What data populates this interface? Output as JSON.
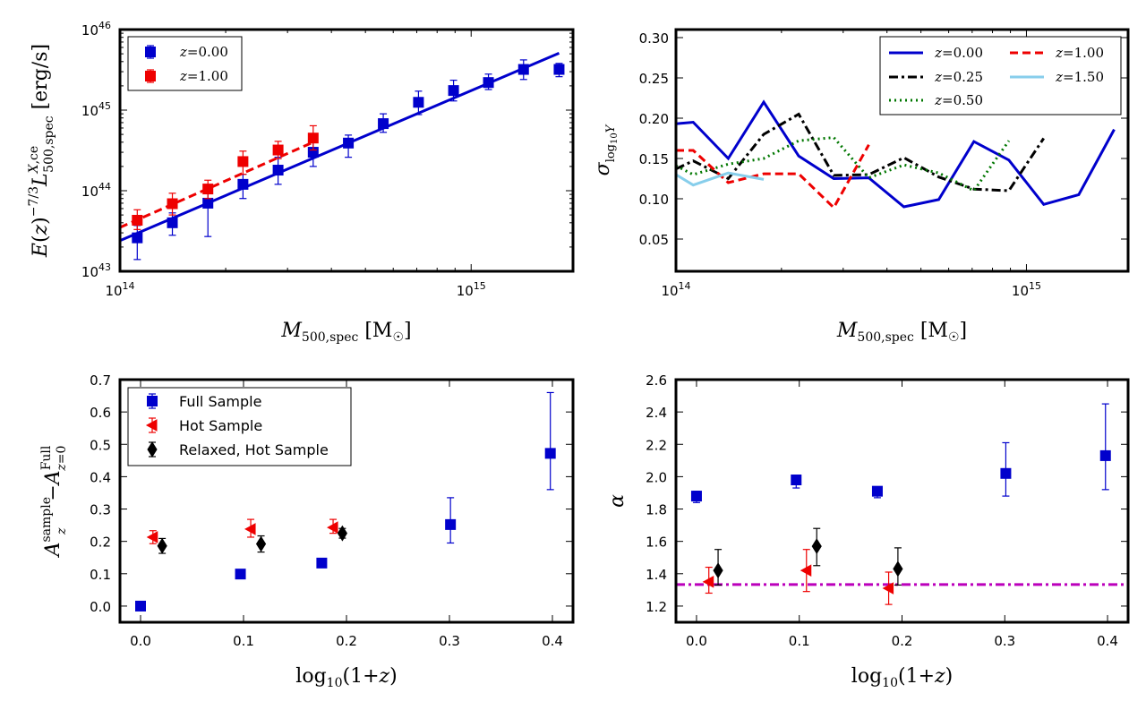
{
  "chart_data": [
    {
      "type": "scatter",
      "panel": "top-left",
      "xscale": "log",
      "yscale": "log",
      "xlim": [
        100000000000000.0,
        1950000000000000.0
      ],
      "ylim": [
        1e+43,
        1e+46
      ],
      "xlabel": "M_500,spec [M_☉]",
      "ylabel": "E(z)^-7/3 L^X,ce_500,spec [erg/s]",
      "xticks": [
        "10^14",
        "10^15"
      ],
      "yticks": [
        "10^43",
        "10^44",
        "10^45",
        "10^46"
      ],
      "legend_position": "top-left",
      "series": [
        {
          "name": "z=0.00",
          "color": "#0000cc",
          "marker": "square",
          "points": [
            {
              "x": 112000000000000.0,
              "y": 2.6e+43,
              "lo": 1.4e+43,
              "hi": 3.7e+43
            },
            {
              "x": 141000000000000.0,
              "y": 4e+43,
              "lo": 2.8e+43,
              "hi": 5.3e+43
            },
            {
              "x": 178000000000000.0,
              "y": 7e+43,
              "lo": 2.7e+43,
              "hi": 9.2e+43
            },
            {
              "x": 224000000000000.0,
              "y": 1.2e+44,
              "lo": 8e+43,
              "hi": 1.6e+44
            },
            {
              "x": 282000000000000.0,
              "y": 1.8e+44,
              "lo": 1.2e+44,
              "hi": 2.6e+44
            },
            {
              "x": 355000000000000.0,
              "y": 3e+44,
              "lo": 2e+44,
              "hi": 4e+44
            },
            {
              "x": 447000000000000.0,
              "y": 3.9e+44,
              "lo": 2.6e+44,
              "hi": 4.9e+44
            },
            {
              "x": 562000000000000.0,
              "y": 6.8e+44,
              "lo": 5.3e+44,
              "hi": 9e+44
            },
            {
              "x": 708000000000000.0,
              "y": 1.25e+45,
              "lo": 8.8e+44,
              "hi": 1.72e+45
            },
            {
              "x": 891000000000000.0,
              "y": 1.75e+45,
              "lo": 1.3e+45,
              "hi": 2.35e+45
            },
            {
              "x": 1120000000000000.0,
              "y": 2.2e+45,
              "lo": 1.8e+45,
              "hi": 2.8e+45
            },
            {
              "x": 1410000000000000.0,
              "y": 3.2e+45,
              "lo": 2.4e+45,
              "hi": 4.2e+45
            },
            {
              "x": 1780000000000000.0,
              "y": 3.2e+45,
              "lo": 2.6e+45,
              "hi": 3.8e+45
            }
          ],
          "fit_line": {
            "x": [
              100000000000000.0,
              1780000000000000.0
            ],
            "y": [
              2.4e+43,
              5.1e+45
            ],
            "style": "solid"
          }
        },
        {
          "name": "z=1.00",
          "color": "#ee0000",
          "marker": "square",
          "points": [
            {
              "x": 112000000000000.0,
              "y": 4.3e+43,
              "lo": 3.3e+43,
              "hi": 5.8e+43
            },
            {
              "x": 141000000000000.0,
              "y": 6.9e+43,
              "lo": 5e+43,
              "hi": 9.3e+43
            },
            {
              "x": 178000000000000.0,
              "y": 1.05e+44,
              "lo": 8e+43,
              "hi": 1.35e+44
            },
            {
              "x": 224000000000000.0,
              "y": 2.3e+44,
              "lo": 1.6e+44,
              "hi": 3.1e+44
            },
            {
              "x": 282000000000000.0,
              "y": 3.2e+44,
              "lo": 2.5e+44,
              "hi": 4.1e+44
            },
            {
              "x": 355000000000000.0,
              "y": 4.5e+44,
              "lo": 3.2e+44,
              "hi": 6.4e+44
            }
          ],
          "fit_line": {
            "x": [
              100000000000000.0,
              355000000000000.0
            ],
            "y": [
              3.5e+43,
              4e+44
            ],
            "style": "dashed"
          }
        }
      ]
    },
    {
      "type": "line",
      "panel": "top-right",
      "xscale": "log",
      "xlim": [
        100000000000000.0,
        1950000000000000.0
      ],
      "ylim": [
        0.01,
        0.31
      ],
      "xlabel": "M_500,spec [M_☉]",
      "ylabel": "σ_log10 Y",
      "xticks": [
        "10^14",
        "10^15"
      ],
      "yticks": [
        "0.05",
        "0.10",
        "0.15",
        "0.20",
        "0.25",
        "0.30"
      ],
      "legend_position": "top-right",
      "series": [
        {
          "name": "z=0.00",
          "color": "#0000cc",
          "style": "solid",
          "x": [
            100000000000000.0,
            112000000000000.0,
            141000000000000.0,
            178000000000000.0,
            224000000000000.0,
            282000000000000.0,
            355000000000000.0,
            447000000000000.0,
            562000000000000.0,
            708000000000000.0,
            891000000000000.0,
            1120000000000000.0,
            1410000000000000.0,
            1780000000000000.0
          ],
          "y": [
            0.193,
            0.195,
            0.15,
            0.22,
            0.153,
            0.125,
            0.126,
            0.09,
            0.099,
            0.171,
            0.148,
            0.093,
            0.105,
            0.186
          ]
        },
        {
          "name": "z=0.25",
          "color": "#000000",
          "style": "dashdot",
          "x": [
            100000000000000.0,
            112000000000000.0,
            141000000000000.0,
            178000000000000.0,
            224000000000000.0,
            282000000000000.0,
            355000000000000.0,
            447000000000000.0,
            562000000000000.0,
            708000000000000.0,
            891000000000000.0,
            1120000000000000.0
          ],
          "y": [
            0.137,
            0.147,
            0.125,
            0.18,
            0.205,
            0.129,
            0.13,
            0.151,
            0.127,
            0.112,
            0.11,
            0.175
          ]
        },
        {
          "name": "z=0.50",
          "color": "#007700",
          "style": "dotted",
          "x": [
            100000000000000.0,
            112000000000000.0,
            141000000000000.0,
            178000000000000.0,
            224000000000000.0,
            282000000000000.0,
            355000000000000.0,
            447000000000000.0,
            562000000000000.0,
            708000000000000.0,
            891000000000000.0
          ],
          "y": [
            0.141,
            0.13,
            0.143,
            0.15,
            0.172,
            0.176,
            0.126,
            0.142,
            0.132,
            0.11,
            0.172
          ]
        },
        {
          "name": "z=1.00",
          "color": "#ee0000",
          "style": "dashed",
          "x": [
            100000000000000.0,
            112000000000000.0,
            141000000000000.0,
            178000000000000.0,
            224000000000000.0,
            282000000000000.0,
            355000000000000.0
          ],
          "y": [
            0.16,
            0.16,
            0.12,
            0.131,
            0.131,
            0.089,
            0.167
          ]
        },
        {
          "name": "z=1.50",
          "color": "#87ceeb",
          "style": "solid",
          "x": [
            100000000000000.0,
            112000000000000.0,
            141000000000000.0,
            178000000000000.0
          ],
          "y": [
            0.13,
            0.117,
            0.132,
            0.124
          ]
        }
      ]
    },
    {
      "type": "scatter",
      "panel": "bottom-left",
      "xlim": [
        -0.02,
        0.42
      ],
      "ylim": [
        -0.05,
        0.7
      ],
      "xlabel": "log10(1+z)",
      "ylabel": "A_z^sample − A_z=0^Full",
      "xticks": [
        "0.0",
        "0.1",
        "0.2",
        "0.3",
        "0.4"
      ],
      "yticks": [
        "0.0",
        "0.1",
        "0.2",
        "0.3",
        "0.4",
        "0.5",
        "0.6",
        "0.7"
      ],
      "legend_position": "top-left",
      "series": [
        {
          "name": "Full Sample",
          "color": "#0000cc",
          "marker": "square",
          "points": [
            {
              "x": 0.0,
              "y": 0.0,
              "lo": 0.0,
              "hi": 0.0
            },
            {
              "x": 0.097,
              "y": 0.099,
              "lo": 0.094,
              "hi": 0.104
            },
            {
              "x": 0.176,
              "y": 0.133,
              "lo": 0.128,
              "hi": 0.138
            },
            {
              "x": 0.301,
              "y": 0.252,
              "lo": 0.195,
              "hi": 0.335
            },
            {
              "x": 0.398,
              "y": 0.472,
              "lo": 0.36,
              "hi": 0.66
            }
          ]
        },
        {
          "name": "Hot Sample",
          "color": "#ee0000",
          "marker": "triangle-left",
          "points": [
            {
              "x": 0.012,
              "y": 0.213,
              "lo": 0.193,
              "hi": 0.233
            },
            {
              "x": 0.107,
              "y": 0.238,
              "lo": 0.213,
              "hi": 0.268
            },
            {
              "x": 0.187,
              "y": 0.243,
              "lo": 0.225,
              "hi": 0.268
            }
          ]
        },
        {
          "name": "Relaxed, Hot Sample",
          "color": "#000000",
          "marker": "diamond",
          "points": [
            {
              "x": 0.021,
              "y": 0.186,
              "lo": 0.163,
              "hi": 0.209
            },
            {
              "x": 0.117,
              "y": 0.192,
              "lo": 0.167,
              "hi": 0.217
            },
            {
              "x": 0.196,
              "y": 0.225,
              "lo": 0.21,
              "hi": 0.24
            }
          ]
        }
      ]
    },
    {
      "type": "scatter",
      "panel": "bottom-right",
      "xlim": [
        -0.02,
        0.42
      ],
      "ylim": [
        1.1,
        2.6
      ],
      "xlabel": "log10(1+z)",
      "ylabel": "α",
      "xticks": [
        "0.0",
        "0.1",
        "0.2",
        "0.3",
        "0.4"
      ],
      "yticks": [
        "1.2",
        "1.4",
        "1.6",
        "1.8",
        "2.0",
        "2.2",
        "2.4",
        "2.6"
      ],
      "reference_line": {
        "y": 1.333,
        "color": "#bb00bb",
        "style": "dashdot"
      },
      "series": [
        {
          "name": "Full Sample",
          "color": "#0000cc",
          "marker": "square",
          "points": [
            {
              "x": 0.0,
              "y": 1.88,
              "lo": 1.84,
              "hi": 1.91
            },
            {
              "x": 0.097,
              "y": 1.98,
              "lo": 1.93,
              "hi": 2.01
            },
            {
              "x": 0.176,
              "y": 1.91,
              "lo": 1.87,
              "hi": 1.93
            },
            {
              "x": 0.301,
              "y": 2.02,
              "lo": 1.88,
              "hi": 2.21
            },
            {
              "x": 0.398,
              "y": 2.13,
              "lo": 1.92,
              "hi": 2.45
            }
          ]
        },
        {
          "name": "Hot Sample",
          "color": "#ee0000",
          "marker": "triangle-left",
          "points": [
            {
              "x": 0.012,
              "y": 1.35,
              "lo": 1.28,
              "hi": 1.44
            },
            {
              "x": 0.107,
              "y": 1.42,
              "lo": 1.29,
              "hi": 1.55
            },
            {
              "x": 0.187,
              "y": 1.31,
              "lo": 1.21,
              "hi": 1.41
            }
          ]
        },
        {
          "name": "Relaxed, Hot Sample",
          "color": "#000000",
          "marker": "diamond",
          "points": [
            {
              "x": 0.021,
              "y": 1.42,
              "lo": 1.33,
              "hi": 1.55
            },
            {
              "x": 0.117,
              "y": 1.57,
              "lo": 1.45,
              "hi": 1.68
            },
            {
              "x": 0.196,
              "y": 1.43,
              "lo": 1.33,
              "hi": 1.56
            }
          ]
        }
      ]
    }
  ]
}
